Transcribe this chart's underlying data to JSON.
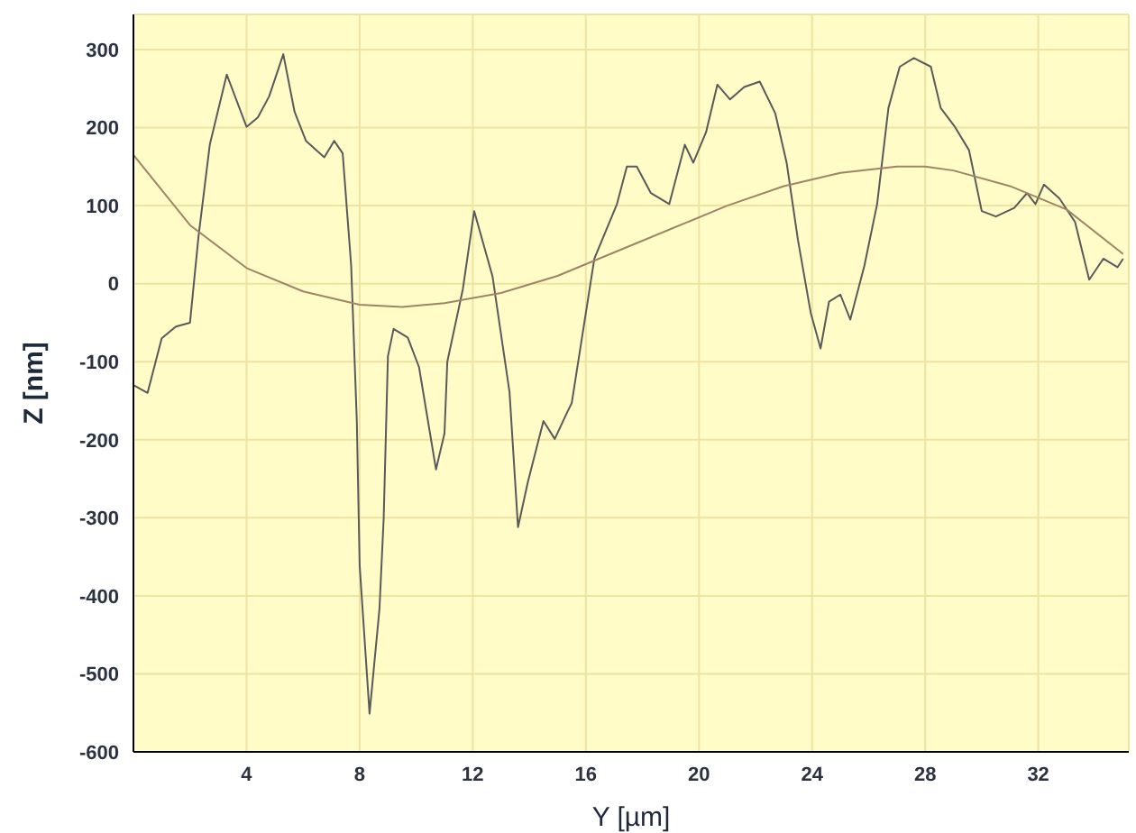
{
  "chart_data": {
    "type": "line",
    "xlabel": "Y [µm]",
    "ylabel": "Z [nm]",
    "xlim": [
      0,
      35.2
    ],
    "xticks": [
      4,
      8,
      12,
      16,
      20,
      24,
      28,
      32
    ],
    "ylim": [
      -600,
      345
    ],
    "yticks": [
      -600,
      -500,
      -400,
      -300,
      -200,
      -100,
      0,
      100,
      200,
      300
    ],
    "grid": true,
    "marker": "none",
    "line_style": "solid",
    "series": [
      {
        "color": "#5a5a5a",
        "x": [
          0,
          0.5,
          1.0,
          1.5,
          2.0,
          2.3,
          2.7,
          3.3,
          4.0,
          4.4,
          4.8,
          5.3,
          5.7,
          6.1,
          6.75,
          7.1,
          7.4,
          7.7,
          7.9,
          8.0,
          8.35,
          8.7,
          8.85,
          9.0,
          9.2,
          9.7,
          10.1,
          10.7,
          11.0,
          11.1,
          11.65,
          12.05,
          12.7,
          13.3,
          13.6,
          13.95,
          14.5,
          14.9,
          15.35,
          15.5,
          16.3,
          17.1,
          17.45,
          17.8,
          18.3,
          18.95,
          19.5,
          19.8,
          20.25,
          20.65,
          21.1,
          21.6,
          22.15,
          22.7,
          23.1,
          23.5,
          23.95,
          24.3,
          24.6,
          25.0,
          25.35,
          25.85,
          26.3,
          26.7,
          27.1,
          27.6,
          28.2,
          28.55,
          29.05,
          29.55,
          30.0,
          30.5,
          31.15,
          31.6,
          31.9,
          32.2,
          32.75,
          33.3,
          33.8,
          34.3,
          34.8,
          35.0
        ],
        "values": [
          -130,
          -140,
          -70,
          -55,
          -50,
          60,
          178,
          268,
          201,
          213,
          240,
          294,
          220,
          183,
          162,
          183,
          167,
          23,
          -176,
          -361,
          -551,
          -417,
          -301,
          -93,
          -58,
          -69,
          -107,
          -238,
          -192,
          -100,
          -7,
          93,
          9,
          -139,
          -312,
          -254,
          -176,
          -199,
          -164,
          -153,
          32,
          102,
          150,
          150,
          116,
          102,
          178,
          155,
          194,
          255,
          236,
          252,
          259,
          218,
          155,
          56,
          -37,
          -83,
          -23,
          -14,
          -46,
          23,
          102,
          225,
          278,
          289,
          278,
          225,
          201,
          171,
          93,
          86,
          97,
          116,
          102,
          127,
          109,
          79,
          5,
          32,
          21,
          32
        ]
      },
      {
        "color": "#a08468",
        "x": [
          0,
          2,
          4,
          6,
          8,
          9.5,
          11,
          13,
          15,
          17,
          19,
          21,
          23,
          25,
          27,
          28,
          29,
          31,
          33,
          35
        ],
        "values": [
          165,
          75,
          20,
          -10,
          -27,
          -30,
          -25,
          -12,
          10,
          40,
          70,
          100,
          125,
          142,
          150,
          150,
          145,
          125,
          95,
          38
        ]
      }
    ]
  }
}
